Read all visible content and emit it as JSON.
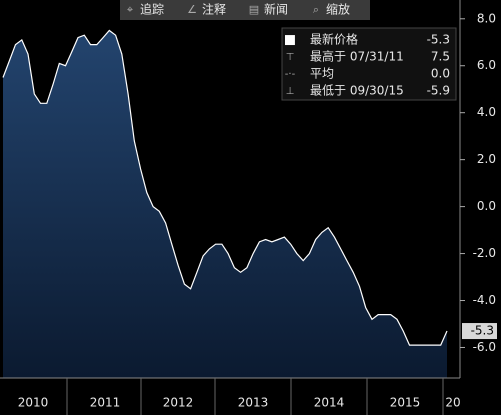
{
  "chart_data": {
    "type": "area",
    "toolbar": [
      "追踪",
      "注释",
      "新闻",
      "缩放"
    ],
    "x_labels": [
      "2010",
      "2011",
      "2012",
      "2013",
      "2014",
      "2015",
      "20"
    ],
    "series": [
      {
        "color": "#ffffff",
        "fill": "#1c3a60",
        "values": [
          5.5,
          6.2,
          6.9,
          7.1,
          6.5,
          4.8,
          4.4,
          4.4,
          5.2,
          6.1,
          6.0,
          6.6,
          7.2,
          7.3,
          6.9,
          6.9,
          7.2,
          7.5,
          7.3,
          6.5,
          4.8,
          2.8,
          1.6,
          0.6,
          0.0,
          -0.2,
          -0.7,
          -1.6,
          -2.5,
          -3.3,
          -3.5,
          -2.8,
          -2.1,
          -1.8,
          -1.6,
          -1.6,
          -2.0,
          -2.6,
          -2.8,
          -2.6,
          -2.0,
          -1.5,
          -1.4,
          -1.5,
          -1.4,
          -1.3,
          -1.6,
          -2.0,
          -2.3,
          -2.0,
          -1.4,
          -1.1,
          -0.9,
          -1.3,
          -1.8,
          -2.3,
          -2.8,
          -3.4,
          -4.3,
          -4.8,
          -4.6,
          -4.6,
          -4.6,
          -4.8,
          -5.3,
          -5.9,
          -5.9,
          -5.9,
          -5.9,
          -5.9,
          -5.9,
          -5.3
        ]
      }
    ],
    "ylim": [
      -7.3,
      8.8
    ],
    "yticks": [
      {
        "value": 8,
        "label": "8.0"
      },
      {
        "value": 6,
        "label": "6.0"
      },
      {
        "value": 4,
        "label": "4.0"
      },
      {
        "value": 2,
        "label": "2.0"
      },
      {
        "value": 0,
        "label": "0.0"
      },
      {
        "value": -2,
        "label": "-2.0"
      },
      {
        "value": -4,
        "label": "-4.0"
      },
      {
        "value": -6,
        "label": "-6.0"
      }
    ],
    "grid": false,
    "stats": [
      {
        "label": "最新价格",
        "value": -5.3
      },
      {
        "label": "最高于 07/31/11",
        "value": 7.5
      },
      {
        "label": "平均",
        "value": {
          "value": 0,
          "label": "0.0"
        }
      },
      {
        "label": "最低于 09/30/15",
        "value": -5.9
      }
    ]
  }
}
